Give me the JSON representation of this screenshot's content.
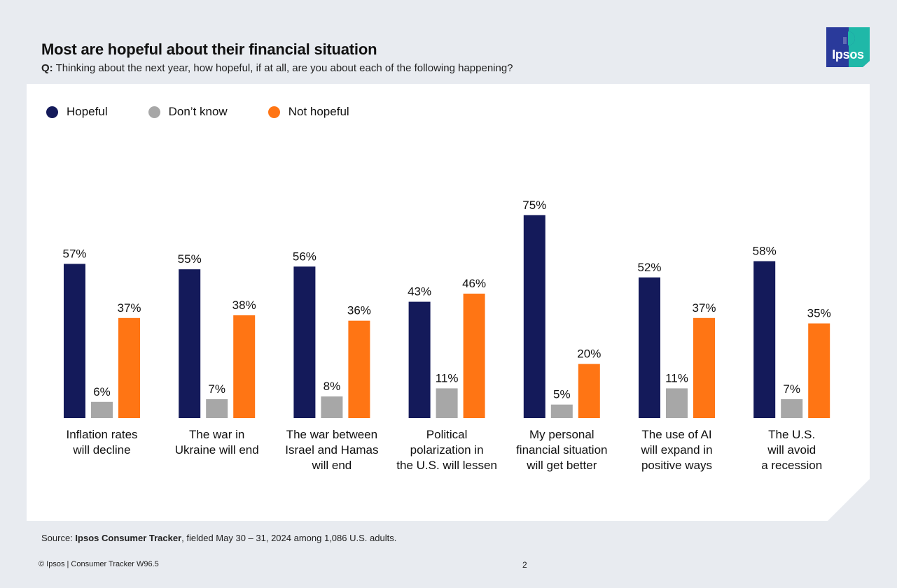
{
  "header": {
    "title": "Most are hopeful about their financial situation",
    "question_prefix": "Q:",
    "question_text": " Thinking about the next year, how hopeful, if at all, are you about each of the following happening?"
  },
  "logo": {
    "text": "Ipsos",
    "colors": [
      "#2a3a9b",
      "#1fb8a8"
    ]
  },
  "chart_data": {
    "type": "bar",
    "categories": [
      "Inflation rates\nwill decline",
      "The war in\nUkraine will end",
      "The war between\nIsrael and Hamas\nwill end",
      "Political\npolarization in\nthe U.S. will lessen",
      "My personal\nfinancial situation\nwill get better",
      "The use of AI\nwill expand in\npositive ways",
      "The U.S.\nwill avoid\na recession"
    ],
    "series": [
      {
        "name": "Hopeful",
        "color": "#141a5a",
        "values": [
          57,
          55,
          56,
          43,
          75,
          52,
          58
        ]
      },
      {
        "name": "Don’t know",
        "color": "#a7a7a7",
        "values": [
          6,
          7,
          8,
          11,
          5,
          11,
          7
        ]
      },
      {
        "name": "Not hopeful",
        "color": "#ff7514",
        "values": [
          37,
          38,
          36,
          46,
          20,
          37,
          35
        ]
      }
    ],
    "value_suffix": "%",
    "legend_position": "top-left",
    "grid": false,
    "ylim": [
      0,
      100
    ]
  },
  "footer": {
    "source_prefix": "Source: ",
    "source_bold": "Ipsos Consumer Tracker",
    "source_rest": ", fielded May 30 – 31, 2024 among 1,086 U.S. adults.",
    "copyright": "© Ipsos | Consumer Tracker W96.5",
    "page": "2"
  }
}
